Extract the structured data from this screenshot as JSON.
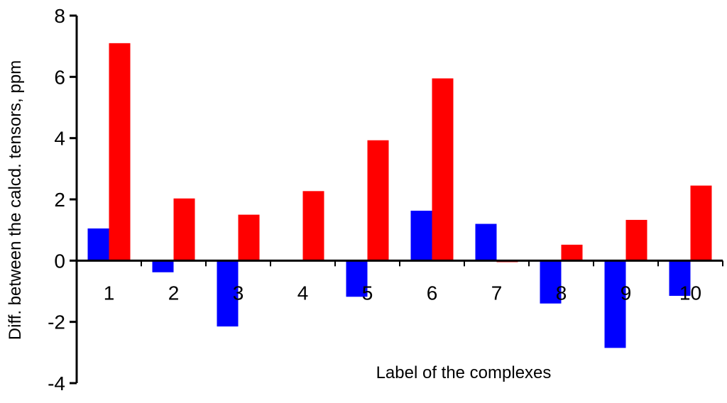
{
  "chart_data": {
    "type": "bar",
    "title": "",
    "xlabel": "Label of the complexes",
    "ylabel": "Diff. between the calcd. tensors, ppm",
    "categories": [
      "1",
      "2",
      "3",
      "4",
      "5",
      "6",
      "7",
      "8",
      "9",
      "10"
    ],
    "series": [
      {
        "color": "#0000ff",
        "values": [
          1.05,
          -0.38,
          -2.15,
          0.0,
          -1.18,
          1.63,
          1.2,
          -1.4,
          -2.85,
          -1.15
        ]
      },
      {
        "color": "#ff0000",
        "values": [
          7.1,
          2.03,
          1.5,
          2.27,
          3.93,
          5.95,
          -0.05,
          0.52,
          1.33,
          2.45
        ]
      }
    ],
    "ylim": [
      -4,
      8
    ],
    "yticks": [
      -4,
      -2,
      0,
      2,
      4,
      6,
      8
    ],
    "grid": false,
    "legend": "none"
  }
}
